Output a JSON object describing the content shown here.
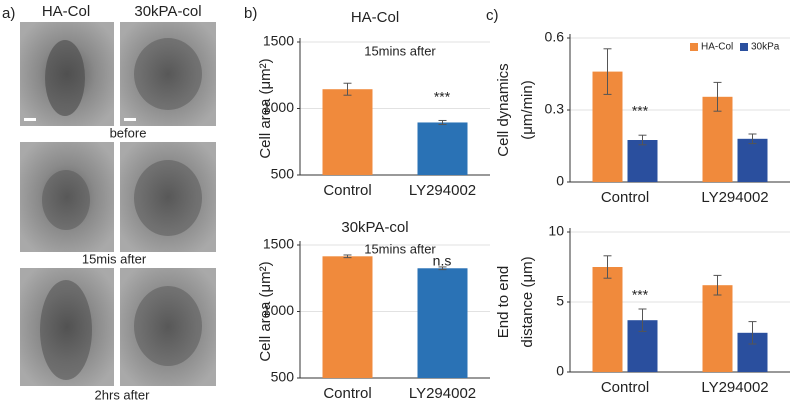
{
  "panel_a": {
    "label": "a)",
    "columns": [
      "HA-Col",
      "30kPA-col"
    ],
    "rows": [
      "before",
      "15mis after",
      "2hrs after"
    ]
  },
  "panel_labels": [
    "b)",
    "c)"
  ],
  "chart_data": [
    {
      "type": "bar",
      "title": "HA-Col",
      "subtitle": "15mins after",
      "ylabel": [
        "Cell area (μm²)"
      ],
      "categories": [
        "Control",
        "LY294002"
      ],
      "values": [
        1145,
        895
      ],
      "errors": [
        45,
        15
      ],
      "colors": [
        "#f08a3c",
        "#2a72b5"
      ],
      "annotations": [
        "***"
      ],
      "ylim": [
        500,
        1500
      ],
      "yticks": [
        500,
        1000,
        1500
      ],
      "grid": true
    },
    {
      "type": "bar",
      "title": "30kPA-col",
      "subtitle": "15mins after",
      "ylabel": [
        "Cell area (μm²)"
      ],
      "categories": [
        "Control",
        "LY294002"
      ],
      "values": [
        1415,
        1325
      ],
      "errors": [
        10,
        10
      ],
      "colors": [
        "#f08a3c",
        "#2a72b5"
      ],
      "annotations": [
        "n.s"
      ],
      "ylim": [
        500,
        1500
      ],
      "yticks": [
        500,
        1000,
        1500
      ],
      "grid": true
    },
    {
      "type": "bar",
      "ylabel": [
        "Cell dynamics",
        "(μm/min)"
      ],
      "categories": [
        "Control",
        "LY294002"
      ],
      "series": [
        {
          "name": "HA-Col",
          "color": "#f08a3c",
          "values": [
            0.46,
            0.355
          ],
          "errors": [
            0.095,
            0.06
          ]
        },
        {
          "name": "30kPa",
          "color": "#2a4f9e",
          "values": [
            0.175,
            0.18
          ],
          "errors": [
            0.02,
            0.02
          ]
        }
      ],
      "annotations": [
        "***"
      ],
      "legend": "upper right",
      "ylim": [
        0,
        0.6
      ],
      "yticks": [
        0,
        0.3,
        0.6
      ],
      "grid": true
    },
    {
      "type": "bar",
      "ylabel": [
        "End to end",
        "distance (μm)"
      ],
      "categories": [
        "Control",
        "LY294002"
      ],
      "series": [
        {
          "color": "#f08a3c",
          "values": [
            7.5,
            6.2
          ],
          "errors": [
            0.8,
            0.7
          ]
        },
        {
          "color": "#2a4f9e",
          "values": [
            3.7,
            2.8
          ],
          "errors": [
            0.8,
            0.8
          ]
        }
      ],
      "annotations": [
        "***"
      ],
      "ylim": [
        0,
        10
      ],
      "yticks": [
        0,
        5,
        10
      ],
      "grid": true
    }
  ]
}
